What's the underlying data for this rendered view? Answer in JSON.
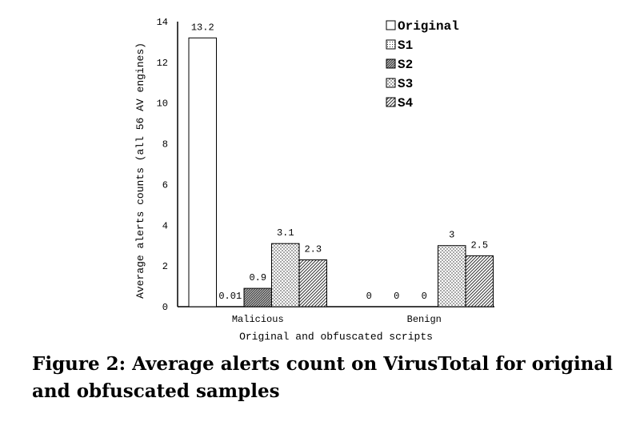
{
  "caption": "Figure 2: Average alerts count on VirusTotal for original and obfuscated samples",
  "chart_data": {
    "type": "bar",
    "xlabel": "Original and obfuscated scripts",
    "ylabel": "Average alerts counts (all 56 AV engines)",
    "ylim": [
      0,
      14
    ],
    "yticks": [
      "0",
      "2",
      "4",
      "6",
      "8",
      "10",
      "12",
      "14"
    ],
    "categories": [
      "Malicious",
      "Benign"
    ],
    "legend_position": "top-right",
    "grid": false,
    "series": [
      {
        "name": "Original",
        "pattern": "white",
        "values": [
          13.2,
          0
        ],
        "labels": [
          "13.2",
          "0"
        ]
      },
      {
        "name": "S1",
        "pattern": "fine-dots",
        "values": [
          0.01,
          0
        ],
        "labels": [
          "0.01",
          "0"
        ]
      },
      {
        "name": "S2",
        "pattern": "dense-hatch",
        "values": [
          0.9,
          0
        ],
        "labels": [
          "0.9",
          "0"
        ]
      },
      {
        "name": "S3",
        "pattern": "dots",
        "values": [
          3.1,
          3
        ],
        "labels": [
          "3.1",
          "3"
        ]
      },
      {
        "name": "S4",
        "pattern": "diagonal",
        "values": [
          2.3,
          2.5
        ],
        "labels": [
          "2.3",
          "2.5"
        ]
      }
    ]
  }
}
